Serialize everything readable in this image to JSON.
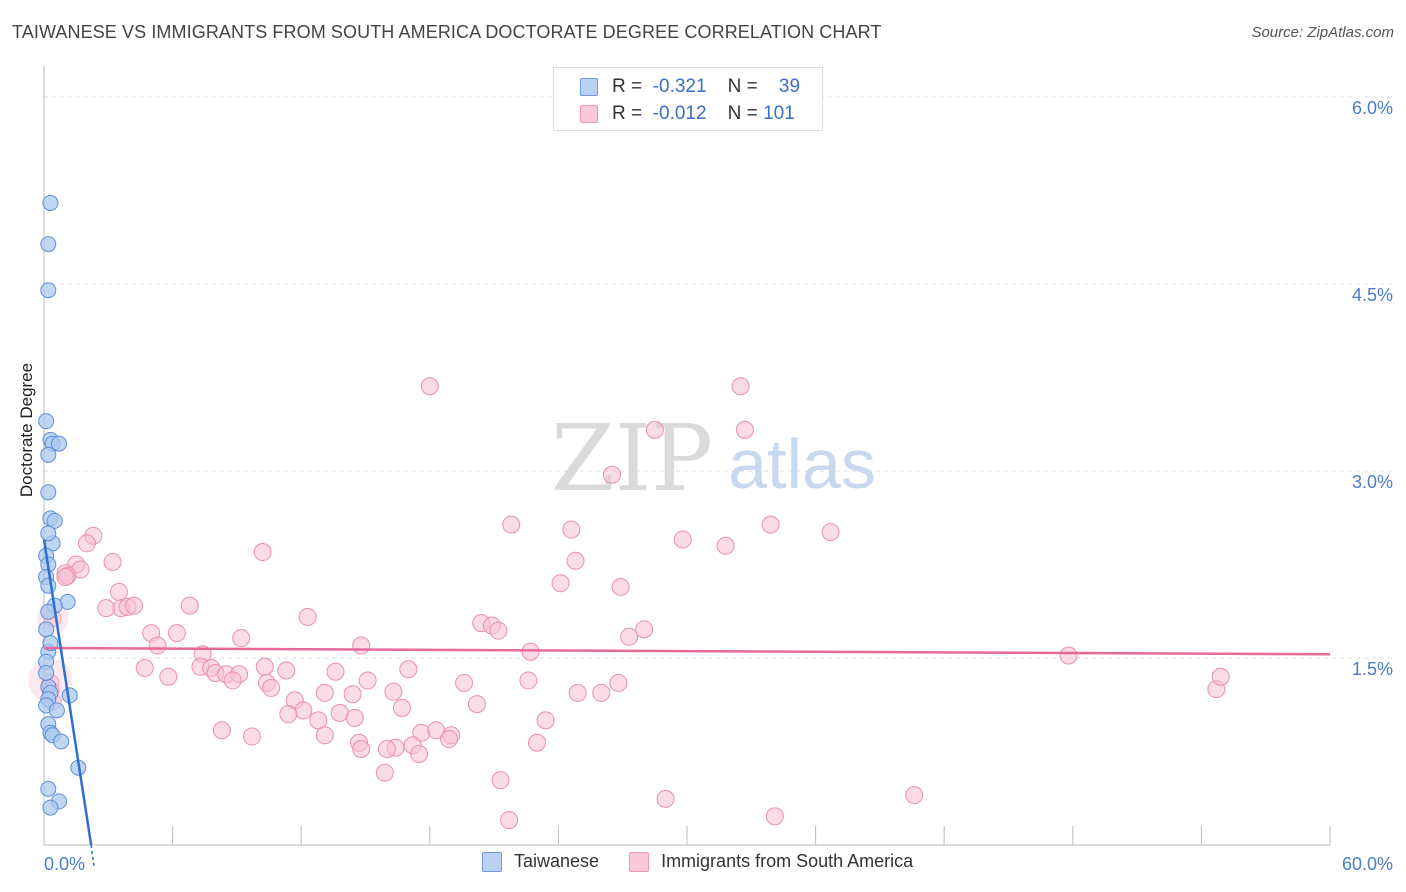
{
  "title": "TAIWANESE VS IMMIGRANTS FROM SOUTH AMERICA DOCTORATE DEGREE CORRELATION CHART",
  "source": "Source: ZipAtlas.com",
  "watermark": {
    "zip": "ZIP",
    "atlas": "atlas"
  },
  "legend": [
    {
      "r_label": "R =",
      "r_value": "-0.321",
      "n_label": "N =",
      "n_value": "39"
    },
    {
      "r_label": "R =",
      "r_value": "-0.012",
      "n_label": "N =",
      "n_value": "101"
    }
  ],
  "colors": {
    "blue_fill": "#a9c8f0",
    "blue_stroke": "#5d8fd6",
    "blue_line": "#2f6fd0",
    "pink_fill": "#f7bfd1",
    "pink_stroke": "#e890ae",
    "pink_line": "#e8689a",
    "tick_text": "#4a7cc9",
    "grid": "#dcdcdc"
  },
  "chart_data": {
    "type": "scatter",
    "title": "TAIWANESE VS IMMIGRANTS FROM SOUTH AMERICA DOCTORATE DEGREE CORRELATION CHART",
    "xlabel": "",
    "ylabel": "Doctorate Degree",
    "xlim": [
      0,
      60
    ],
    "ylim": [
      0,
      6.2
    ],
    "x_tick_labels": [
      "0.0%",
      "60.0%"
    ],
    "y_ticks": [
      {
        "value": 1.5,
        "label": "1.5%"
      },
      {
        "value": 3.0,
        "label": "3.0%"
      },
      {
        "value": 4.5,
        "label": "4.5%"
      },
      {
        "value": 6.0,
        "label": "6.0%"
      }
    ],
    "series": [
      {
        "name": "Taiwanese",
        "color": "#a9c8f0",
        "r": -0.321,
        "n": 39,
        "trend": {
          "x": [
            0.0,
            2.2
          ],
          "y": [
            2.45,
            0.0
          ]
        },
        "points": [
          [
            0.3,
            5.15
          ],
          [
            0.2,
            4.82
          ],
          [
            0.2,
            4.45
          ],
          [
            0.1,
            3.4
          ],
          [
            0.3,
            3.25
          ],
          [
            0.4,
            3.22
          ],
          [
            0.7,
            3.22
          ],
          [
            0.2,
            3.13
          ],
          [
            0.2,
            2.83
          ],
          [
            0.3,
            2.62
          ],
          [
            0.5,
            2.6
          ],
          [
            0.4,
            2.42
          ],
          [
            0.1,
            2.32
          ],
          [
            0.2,
            2.25
          ],
          [
            0.1,
            2.15
          ],
          [
            0.2,
            2.08
          ],
          [
            1.1,
            1.95
          ],
          [
            0.5,
            1.92
          ],
          [
            0.2,
            1.87
          ],
          [
            0.1,
            1.73
          ],
          [
            0.2,
            1.55
          ],
          [
            0.1,
            1.47
          ],
          [
            0.2,
            1.27
          ],
          [
            0.3,
            1.22
          ],
          [
            1.2,
            1.2
          ],
          [
            0.2,
            1.17
          ],
          [
            0.1,
            1.12
          ],
          [
            0.6,
            1.08
          ],
          [
            0.2,
            0.97
          ],
          [
            0.3,
            0.9
          ],
          [
            0.4,
            0.88
          ],
          [
            0.8,
            0.83
          ],
          [
            1.6,
            0.62
          ],
          [
            0.2,
            0.45
          ],
          [
            0.7,
            0.35
          ],
          [
            0.3,
            0.3
          ],
          [
            0.1,
            1.38
          ],
          [
            0.3,
            1.62
          ],
          [
            0.2,
            2.5
          ]
        ]
      },
      {
        "name": "Immigrants from South America",
        "color": "#f7bfd1",
        "r": -0.012,
        "n": 101,
        "trend": {
          "x": [
            0.0,
            60.0
          ],
          "y": [
            1.58,
            1.53
          ]
        },
        "points": [
          [
            18.0,
            3.68
          ],
          [
            32.5,
            3.68
          ],
          [
            28.5,
            3.33
          ],
          [
            32.7,
            3.33
          ],
          [
            26.5,
            2.97
          ],
          [
            21.8,
            2.57
          ],
          [
            24.6,
            2.53
          ],
          [
            33.9,
            2.57
          ],
          [
            36.7,
            2.51
          ],
          [
            29.8,
            2.45
          ],
          [
            31.8,
            2.4
          ],
          [
            10.2,
            2.35
          ],
          [
            2.3,
            2.48
          ],
          [
            2.0,
            2.42
          ],
          [
            3.2,
            2.27
          ],
          [
            1.5,
            2.25
          ],
          [
            1.7,
            2.21
          ],
          [
            1.0,
            2.18
          ],
          [
            1.1,
            2.16
          ],
          [
            24.8,
            2.28
          ],
          [
            24.1,
            2.1
          ],
          [
            26.9,
            2.07
          ],
          [
            3.5,
            2.03
          ],
          [
            3.6,
            1.9
          ],
          [
            3.9,
            1.91
          ],
          [
            4.2,
            1.92
          ],
          [
            6.8,
            1.92
          ],
          [
            2.9,
            1.9
          ],
          [
            12.3,
            1.83
          ],
          [
            20.4,
            1.78
          ],
          [
            20.9,
            1.76
          ],
          [
            21.2,
            1.72
          ],
          [
            28.0,
            1.73
          ],
          [
            27.3,
            1.67
          ],
          [
            6.2,
            1.7
          ],
          [
            5.0,
            1.7
          ],
          [
            9.2,
            1.66
          ],
          [
            5.3,
            1.6
          ],
          [
            22.7,
            1.55
          ],
          [
            14.8,
            1.6
          ],
          [
            47.8,
            1.52
          ],
          [
            7.4,
            1.53
          ],
          [
            4.7,
            1.42
          ],
          [
            7.3,
            1.43
          ],
          [
            10.3,
            1.43
          ],
          [
            7.8,
            1.42
          ],
          [
            8.0,
            1.38
          ],
          [
            8.5,
            1.37
          ],
          [
            9.1,
            1.37
          ],
          [
            11.3,
            1.4
          ],
          [
            13.6,
            1.39
          ],
          [
            17.0,
            1.41
          ],
          [
            5.8,
            1.35
          ],
          [
            8.8,
            1.32
          ],
          [
            15.1,
            1.32
          ],
          [
            19.6,
            1.3
          ],
          [
            22.6,
            1.32
          ],
          [
            26.8,
            1.3
          ],
          [
            10.4,
            1.3
          ],
          [
            10.6,
            1.26
          ],
          [
            16.3,
            1.23
          ],
          [
            24.9,
            1.22
          ],
          [
            26.0,
            1.22
          ],
          [
            13.1,
            1.22
          ],
          [
            14.4,
            1.21
          ],
          [
            11.7,
            1.16
          ],
          [
            12.1,
            1.08
          ],
          [
            16.7,
            1.1
          ],
          [
            20.2,
            1.13
          ],
          [
            11.4,
            1.05
          ],
          [
            12.8,
            1.0
          ],
          [
            13.8,
            1.06
          ],
          [
            14.5,
            1.02
          ],
          [
            23.4,
            1.0
          ],
          [
            8.3,
            0.92
          ],
          [
            9.7,
            0.87
          ],
          [
            13.1,
            0.88
          ],
          [
            17.6,
            0.9
          ],
          [
            18.3,
            0.92
          ],
          [
            19.0,
            0.88
          ],
          [
            14.7,
            0.82
          ],
          [
            16.4,
            0.78
          ],
          [
            17.2,
            0.8
          ],
          [
            14.8,
            0.77
          ],
          [
            16.0,
            0.77
          ],
          [
            17.5,
            0.73
          ],
          [
            23.0,
            0.82
          ],
          [
            18.9,
            0.85
          ],
          [
            15.9,
            0.58
          ],
          [
            21.3,
            0.52
          ],
          [
            29.0,
            0.37
          ],
          [
            40.6,
            0.4
          ],
          [
            21.7,
            0.2
          ],
          [
            34.1,
            0.23
          ],
          [
            54.7,
            1.25
          ],
          [
            54.9,
            1.35
          ],
          [
            0.3,
            1.3
          ],
          [
            0.4,
            1.82
          ],
          [
            1.0,
            2.15
          ],
          [
            0.4,
            1.15
          ],
          [
            0.3,
            1.24
          ]
        ]
      }
    ],
    "legend": [
      "Taiwanese",
      "Immigrants from South America"
    ]
  },
  "bottom_legend": [
    {
      "label": "Taiwanese"
    },
    {
      "label": "Immigrants from South America"
    }
  ]
}
